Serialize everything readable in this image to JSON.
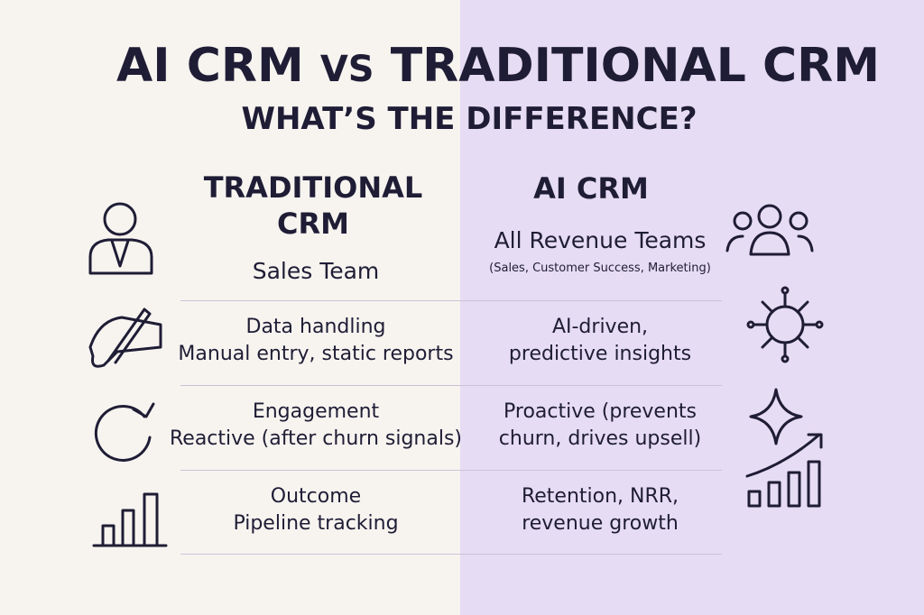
{
  "header": {
    "title_left": "AI CRM",
    "title_vs": "VS",
    "title_right": "TRADITIONAL CRM",
    "subtitle": "WHAT’S THE DIFFERENCE?"
  },
  "columns": {
    "traditional": {
      "heading_lines": [
        "TRADITIONAL",
        "CRM"
      ],
      "audience": "Sales Team"
    },
    "ai": {
      "heading": "AI CRM",
      "audience": "All Revenue Teams",
      "audience_note": "(Sales, Customer Success, Marketing)"
    }
  },
  "rows": [
    {
      "label": "Data handling",
      "traditional": "Manual entry, static reports",
      "ai_lines": [
        "AI-driven,",
        "predictive insights"
      ]
    },
    {
      "label": "Engagement",
      "traditional": "Reactive (after churn signals)",
      "ai_lines": [
        "Proactive (prevents",
        "churn, drives upsell)"
      ]
    },
    {
      "label": "Outcome",
      "traditional": "Pipeline tracking",
      "ai_lines": [
        "Retention, NRR,",
        "revenue growth"
      ]
    }
  ]
}
